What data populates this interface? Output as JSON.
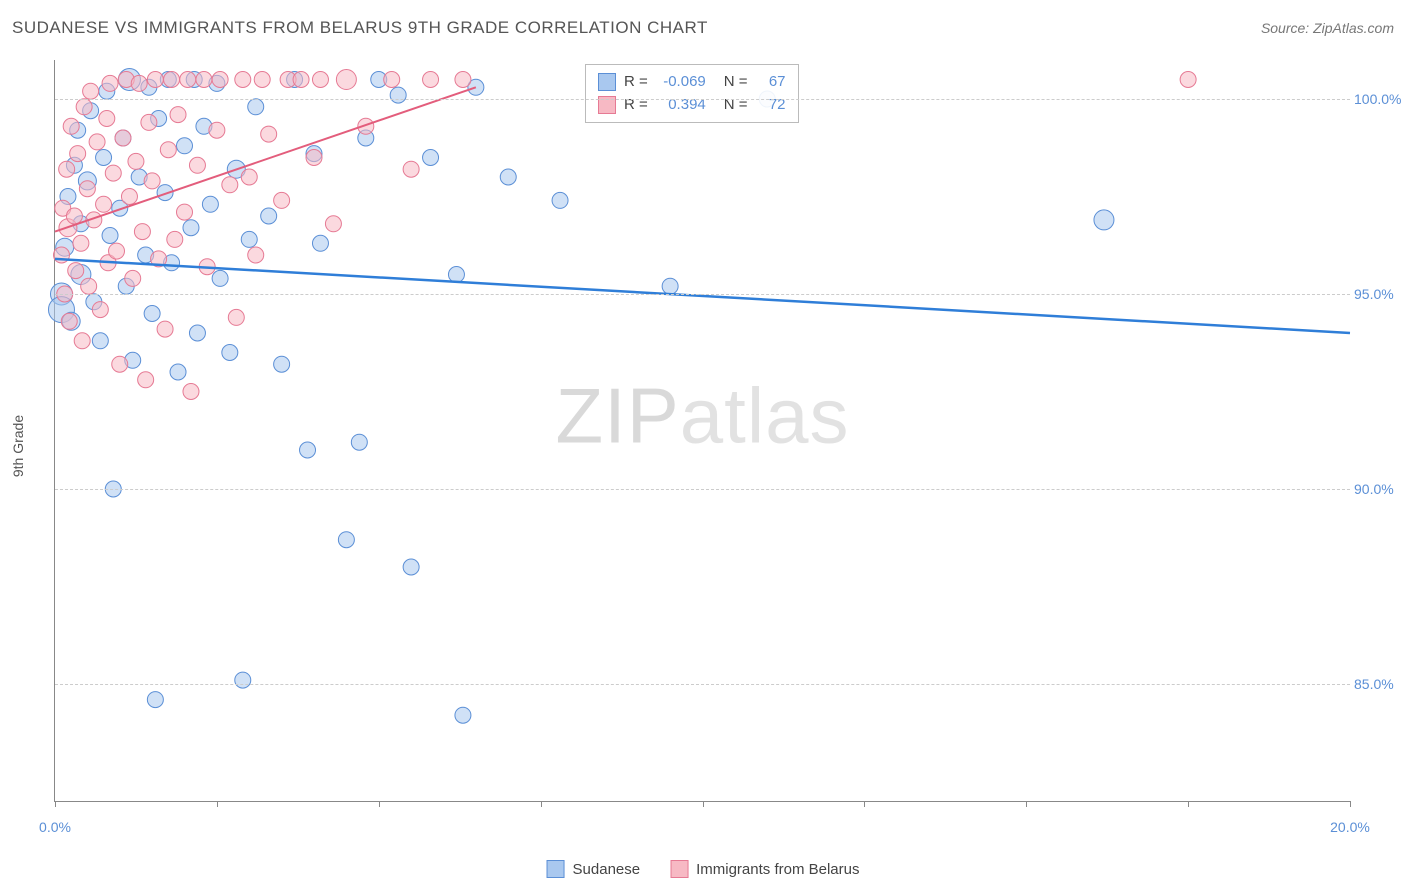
{
  "title": "SUDANESE VS IMMIGRANTS FROM BELARUS 9TH GRADE CORRELATION CHART",
  "source": "Source: ZipAtlas.com",
  "watermark": {
    "bold": "ZIP",
    "light": "atlas"
  },
  "chart": {
    "type": "scatter",
    "y_axis_title": "9th Grade",
    "background_color": "#ffffff",
    "grid_color": "#cccccc",
    "axis_color": "#888888",
    "tick_label_color": "#5b8fd6",
    "xlim": [
      0,
      20
    ],
    "ylim": [
      82,
      101
    ],
    "x_ticks": [
      0,
      2.5,
      5,
      7.5,
      10,
      12.5,
      15,
      17.5,
      20
    ],
    "x_tick_labels": {
      "0": "0.0%",
      "20": "20.0%"
    },
    "y_ticks": [
      85,
      90,
      95,
      100
    ],
    "y_tick_labels": [
      "85.0%",
      "90.0%",
      "95.0%",
      "100.0%"
    ],
    "series": [
      {
        "name": "Sudanese",
        "fill": "#a9c8ef",
        "stroke": "#5b8fd6",
        "fill_opacity": 0.55,
        "marker_r_default": 8,
        "R": "-0.069",
        "N": "67",
        "trend": {
          "x1": 0,
          "y1": 95.9,
          "x2": 20,
          "y2": 94.0,
          "color": "#2f7ed8",
          "width": 2.5
        },
        "points": [
          {
            "x": 0.1,
            "y": 95.0,
            "r": 11
          },
          {
            "x": 0.1,
            "y": 94.6,
            "r": 13
          },
          {
            "x": 0.15,
            "y": 96.2,
            "r": 9
          },
          {
            "x": 0.2,
            "y": 97.5,
            "r": 8
          },
          {
            "x": 0.25,
            "y": 94.3,
            "r": 9
          },
          {
            "x": 0.3,
            "y": 98.3,
            "r": 8
          },
          {
            "x": 0.35,
            "y": 99.2,
            "r": 8
          },
          {
            "x": 0.4,
            "y": 96.8,
            "r": 8
          },
          {
            "x": 0.4,
            "y": 95.5,
            "r": 10
          },
          {
            "x": 0.5,
            "y": 97.9,
            "r": 9
          },
          {
            "x": 0.55,
            "y": 99.7,
            "r": 8
          },
          {
            "x": 0.6,
            "y": 94.8,
            "r": 8
          },
          {
            "x": 0.7,
            "y": 93.8,
            "r": 8
          },
          {
            "x": 0.75,
            "y": 98.5,
            "r": 8
          },
          {
            "x": 0.8,
            "y": 100.2,
            "r": 8
          },
          {
            "x": 0.85,
            "y": 96.5,
            "r": 8
          },
          {
            "x": 0.9,
            "y": 90.0,
            "r": 8
          },
          {
            "x": 1.0,
            "y": 97.2,
            "r": 8
          },
          {
            "x": 1.05,
            "y": 99.0,
            "r": 8
          },
          {
            "x": 1.1,
            "y": 95.2,
            "r": 8
          },
          {
            "x": 1.15,
            "y": 100.5,
            "r": 11
          },
          {
            "x": 1.2,
            "y": 93.3,
            "r": 8
          },
          {
            "x": 1.3,
            "y": 98.0,
            "r": 8
          },
          {
            "x": 1.4,
            "y": 96.0,
            "r": 8
          },
          {
            "x": 1.45,
            "y": 100.3,
            "r": 8
          },
          {
            "x": 1.5,
            "y": 94.5,
            "r": 8
          },
          {
            "x": 1.55,
            "y": 84.6,
            "r": 8
          },
          {
            "x": 1.6,
            "y": 99.5,
            "r": 8
          },
          {
            "x": 1.7,
            "y": 97.6,
            "r": 8
          },
          {
            "x": 1.75,
            "y": 100.5,
            "r": 8
          },
          {
            "x": 1.8,
            "y": 95.8,
            "r": 8
          },
          {
            "x": 1.9,
            "y": 93.0,
            "r": 8
          },
          {
            "x": 2.0,
            "y": 98.8,
            "r": 8
          },
          {
            "x": 2.1,
            "y": 96.7,
            "r": 8
          },
          {
            "x": 2.15,
            "y": 100.5,
            "r": 8
          },
          {
            "x": 2.2,
            "y": 94.0,
            "r": 8
          },
          {
            "x": 2.3,
            "y": 99.3,
            "r": 8
          },
          {
            "x": 2.4,
            "y": 97.3,
            "r": 8
          },
          {
            "x": 2.5,
            "y": 100.4,
            "r": 8
          },
          {
            "x": 2.55,
            "y": 95.4,
            "r": 8
          },
          {
            "x": 2.7,
            "y": 93.5,
            "r": 8
          },
          {
            "x": 2.8,
            "y": 98.2,
            "r": 9
          },
          {
            "x": 2.9,
            "y": 85.1,
            "r": 8
          },
          {
            "x": 3.0,
            "y": 96.4,
            "r": 8
          },
          {
            "x": 3.1,
            "y": 99.8,
            "r": 8
          },
          {
            "x": 3.3,
            "y": 97.0,
            "r": 8
          },
          {
            "x": 3.5,
            "y": 93.2,
            "r": 8
          },
          {
            "x": 3.7,
            "y": 100.5,
            "r": 8
          },
          {
            "x": 3.9,
            "y": 91.0,
            "r": 8
          },
          {
            "x": 4.0,
            "y": 98.6,
            "r": 8
          },
          {
            "x": 4.1,
            "y": 96.3,
            "r": 8
          },
          {
            "x": 4.5,
            "y": 88.7,
            "r": 8
          },
          {
            "x": 4.7,
            "y": 91.2,
            "r": 8
          },
          {
            "x": 4.8,
            "y": 99.0,
            "r": 8
          },
          {
            "x": 5.0,
            "y": 100.5,
            "r": 8
          },
          {
            "x": 5.3,
            "y": 100.1,
            "r": 8
          },
          {
            "x": 5.5,
            "y": 88.0,
            "r": 8
          },
          {
            "x": 5.8,
            "y": 98.5,
            "r": 8
          },
          {
            "x": 6.2,
            "y": 95.5,
            "r": 8
          },
          {
            "x": 6.3,
            "y": 84.2,
            "r": 8
          },
          {
            "x": 6.5,
            "y": 100.3,
            "r": 8
          },
          {
            "x": 7.0,
            "y": 98.0,
            "r": 8
          },
          {
            "x": 7.8,
            "y": 97.4,
            "r": 8
          },
          {
            "x": 9.5,
            "y": 95.2,
            "r": 8
          },
          {
            "x": 11.0,
            "y": 100.0,
            "r": 8
          },
          {
            "x": 16.2,
            "y": 96.9,
            "r": 10
          }
        ]
      },
      {
        "name": "Immigrants from Belarus",
        "fill": "#f7b9c4",
        "stroke": "#e67a94",
        "fill_opacity": 0.55,
        "marker_r_default": 8,
        "R": "0.394",
        "N": "72",
        "trend": {
          "x1": 0,
          "y1": 96.6,
          "x2": 6.5,
          "y2": 100.3,
          "color": "#e35d7c",
          "width": 2
        },
        "points": [
          {
            "x": 0.1,
            "y": 96.0,
            "r": 8
          },
          {
            "x": 0.12,
            "y": 97.2,
            "r": 8
          },
          {
            "x": 0.15,
            "y": 95.0,
            "r": 8
          },
          {
            "x": 0.18,
            "y": 98.2,
            "r": 8
          },
          {
            "x": 0.2,
            "y": 96.7,
            "r": 9
          },
          {
            "x": 0.22,
            "y": 94.3,
            "r": 8
          },
          {
            "x": 0.25,
            "y": 99.3,
            "r": 8
          },
          {
            "x": 0.3,
            "y": 97.0,
            "r": 8
          },
          {
            "x": 0.32,
            "y": 95.6,
            "r": 8
          },
          {
            "x": 0.35,
            "y": 98.6,
            "r": 8
          },
          {
            "x": 0.4,
            "y": 96.3,
            "r": 8
          },
          {
            "x": 0.42,
            "y": 93.8,
            "r": 8
          },
          {
            "x": 0.45,
            "y": 99.8,
            "r": 8
          },
          {
            "x": 0.5,
            "y": 97.7,
            "r": 8
          },
          {
            "x": 0.52,
            "y": 95.2,
            "r": 8
          },
          {
            "x": 0.55,
            "y": 100.2,
            "r": 8
          },
          {
            "x": 0.6,
            "y": 96.9,
            "r": 8
          },
          {
            "x": 0.65,
            "y": 98.9,
            "r": 8
          },
          {
            "x": 0.7,
            "y": 94.6,
            "r": 8
          },
          {
            "x": 0.75,
            "y": 97.3,
            "r": 8
          },
          {
            "x": 0.8,
            "y": 99.5,
            "r": 8
          },
          {
            "x": 0.82,
            "y": 95.8,
            "r": 8
          },
          {
            "x": 0.85,
            "y": 100.4,
            "r": 8
          },
          {
            "x": 0.9,
            "y": 98.1,
            "r": 8
          },
          {
            "x": 0.95,
            "y": 96.1,
            "r": 8
          },
          {
            "x": 1.0,
            "y": 93.2,
            "r": 8
          },
          {
            "x": 1.05,
            "y": 99.0,
            "r": 8
          },
          {
            "x": 1.1,
            "y": 100.5,
            "r": 8
          },
          {
            "x": 1.15,
            "y": 97.5,
            "r": 8
          },
          {
            "x": 1.2,
            "y": 95.4,
            "r": 8
          },
          {
            "x": 1.25,
            "y": 98.4,
            "r": 8
          },
          {
            "x": 1.3,
            "y": 100.4,
            "r": 8
          },
          {
            "x": 1.35,
            "y": 96.6,
            "r": 8
          },
          {
            "x": 1.4,
            "y": 92.8,
            "r": 8
          },
          {
            "x": 1.45,
            "y": 99.4,
            "r": 8
          },
          {
            "x": 1.5,
            "y": 97.9,
            "r": 8
          },
          {
            "x": 1.55,
            "y": 100.5,
            "r": 8
          },
          {
            "x": 1.6,
            "y": 95.9,
            "r": 8
          },
          {
            "x": 1.7,
            "y": 94.1,
            "r": 8
          },
          {
            "x": 1.75,
            "y": 98.7,
            "r": 8
          },
          {
            "x": 1.8,
            "y": 100.5,
            "r": 8
          },
          {
            "x": 1.85,
            "y": 96.4,
            "r": 8
          },
          {
            "x": 1.9,
            "y": 99.6,
            "r": 8
          },
          {
            "x": 2.0,
            "y": 97.1,
            "r": 8
          },
          {
            "x": 2.05,
            "y": 100.5,
            "r": 8
          },
          {
            "x": 2.1,
            "y": 92.5,
            "r": 8
          },
          {
            "x": 2.2,
            "y": 98.3,
            "r": 8
          },
          {
            "x": 2.3,
            "y": 100.5,
            "r": 8
          },
          {
            "x": 2.35,
            "y": 95.7,
            "r": 8
          },
          {
            "x": 2.5,
            "y": 99.2,
            "r": 8
          },
          {
            "x": 2.55,
            "y": 100.5,
            "r": 8
          },
          {
            "x": 2.7,
            "y": 97.8,
            "r": 8
          },
          {
            "x": 2.8,
            "y": 94.4,
            "r": 8
          },
          {
            "x": 2.9,
            "y": 100.5,
            "r": 8
          },
          {
            "x": 3.0,
            "y": 98.0,
            "r": 8
          },
          {
            "x": 3.1,
            "y": 96.0,
            "r": 8
          },
          {
            "x": 3.2,
            "y": 100.5,
            "r": 8
          },
          {
            "x": 3.3,
            "y": 99.1,
            "r": 8
          },
          {
            "x": 3.5,
            "y": 97.4,
            "r": 8
          },
          {
            "x": 3.6,
            "y": 100.5,
            "r": 8
          },
          {
            "x": 3.8,
            "y": 100.5,
            "r": 8
          },
          {
            "x": 4.0,
            "y": 98.5,
            "r": 8
          },
          {
            "x": 4.1,
            "y": 100.5,
            "r": 8
          },
          {
            "x": 4.3,
            "y": 96.8,
            "r": 8
          },
          {
            "x": 4.5,
            "y": 100.5,
            "r": 10
          },
          {
            "x": 4.8,
            "y": 99.3,
            "r": 8
          },
          {
            "x": 5.2,
            "y": 100.5,
            "r": 8
          },
          {
            "x": 5.5,
            "y": 98.2,
            "r": 8
          },
          {
            "x": 5.8,
            "y": 100.5,
            "r": 8
          },
          {
            "x": 6.3,
            "y": 100.5,
            "r": 8
          },
          {
            "x": 17.5,
            "y": 100.5,
            "r": 8
          }
        ]
      }
    ],
    "legend_box": {
      "r_label": "R =",
      "n_label": "N ="
    },
    "bottom_legend": [
      {
        "label": "Sudanese",
        "fill": "#a9c8ef",
        "stroke": "#5b8fd6"
      },
      {
        "label": "Immigrants from Belarus",
        "fill": "#f7b9c4",
        "stroke": "#e67a94"
      }
    ]
  }
}
